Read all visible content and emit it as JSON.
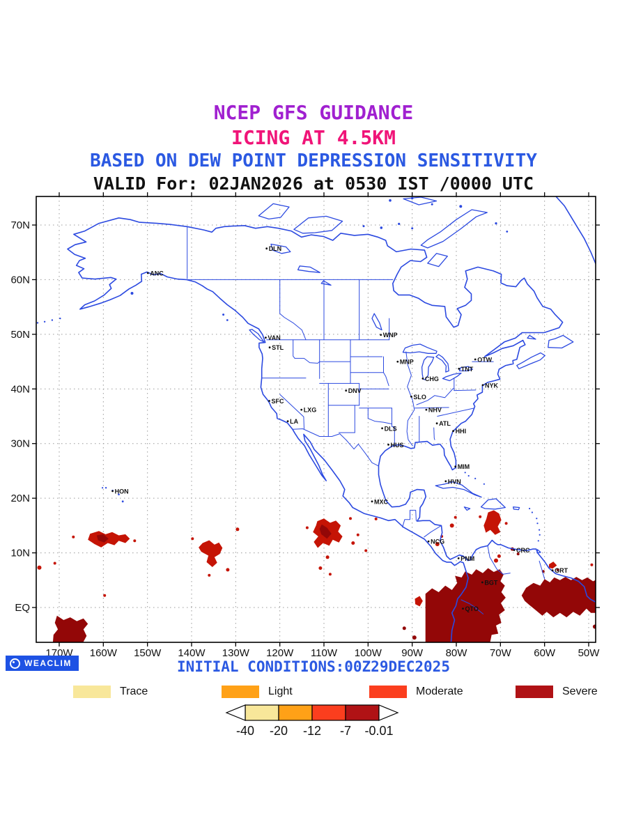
{
  "header": {
    "line1": "NCEP GFS GUIDANCE",
    "line2": "ICING AT 4.5KM",
    "line3": "BASED ON DEW POINT DEPRESSION SENSITIVITY",
    "line4": "VALID For: 02JAN2026 at 0530 IST /0000 UTC",
    "colors": {
      "line1": "#A020D0",
      "line2": "#F01478",
      "line3": "#2B59E2",
      "line4": "#111111"
    }
  },
  "map": {
    "line_color": "#2B49E0",
    "grid_color": "#999999",
    "lat_ticks": [
      {
        "text": "70N",
        "lat": 70
      },
      {
        "text": "60N",
        "lat": 60
      },
      {
        "text": "50N",
        "lat": 50
      },
      {
        "text": "40N",
        "lat": 40
      },
      {
        "text": "30N",
        "lat": 30
      },
      {
        "text": "20N",
        "lat": 20
      },
      {
        "text": "10N",
        "lat": 10
      },
      {
        "text": "EQ",
        "lat": 0
      }
    ],
    "lon_ticks": [
      {
        "text": "170W",
        "lon": 170
      },
      {
        "text": "160W",
        "lon": 160
      },
      {
        "text": "150W",
        "lon": 150
      },
      {
        "text": "140W",
        "lon": 140
      },
      {
        "text": "130W",
        "lon": 130
      },
      {
        "text": "120W",
        "lon": 120
      },
      {
        "text": "110W",
        "lon": 110
      },
      {
        "text": "100W",
        "lon": 100
      },
      {
        "text": "90W",
        "lon": 90
      },
      {
        "text": "80W",
        "lon": 80
      },
      {
        "text": "70W",
        "lon": 70
      },
      {
        "text": "60W",
        "lon": 60
      },
      {
        "text": "50W",
        "lon": 50
      }
    ],
    "cities": [
      {
        "label": "ANC",
        "lon": 149.9,
        "lat": 61.2
      },
      {
        "label": "DLN",
        "lon": 123.0,
        "lat": 65.7
      },
      {
        "label": "VAN",
        "lon": 123.2,
        "lat": 49.4
      },
      {
        "label": "STL",
        "lon": 122.3,
        "lat": 47.6
      },
      {
        "label": "WNP",
        "lon": 97.1,
        "lat": 49.9
      },
      {
        "label": "MNP",
        "lon": 93.3,
        "lat": 45.0
      },
      {
        "label": "OTW",
        "lon": 75.7,
        "lat": 45.4
      },
      {
        "label": "CHG",
        "lon": 87.6,
        "lat": 41.9
      },
      {
        "label": "TNT",
        "lon": 79.4,
        "lat": 43.7
      },
      {
        "label": "NYK",
        "lon": 74.0,
        "lat": 40.7
      },
      {
        "label": "DNV",
        "lon": 105.0,
        "lat": 39.7
      },
      {
        "label": "SLO",
        "lon": 90.2,
        "lat": 38.6
      },
      {
        "label": "SFC",
        "lon": 122.4,
        "lat": 37.8
      },
      {
        "label": "LXG",
        "lon": 115.1,
        "lat": 36.2
      },
      {
        "label": "NHV",
        "lon": 86.8,
        "lat": 36.2
      },
      {
        "label": "LA",
        "lon": 118.2,
        "lat": 34.1
      },
      {
        "label": "ATL",
        "lon": 84.4,
        "lat": 33.7
      },
      {
        "label": "DLS",
        "lon": 96.8,
        "lat": 32.8
      },
      {
        "label": "HHI",
        "lon": 80.7,
        "lat": 32.3
      },
      {
        "label": "HUS",
        "lon": 95.4,
        "lat": 29.8
      },
      {
        "label": "MIM",
        "lon": 80.2,
        "lat": 25.8
      },
      {
        "label": "HVN",
        "lon": 82.4,
        "lat": 23.1
      },
      {
        "label": "HON",
        "lon": 157.9,
        "lat": 21.3
      },
      {
        "label": "MXC",
        "lon": 99.1,
        "lat": 19.4
      },
      {
        "label": "NCG",
        "lon": 86.3,
        "lat": 12.1
      },
      {
        "label": "CRC",
        "lon": 66.9,
        "lat": 10.5
      },
      {
        "label": "PNM",
        "lon": 79.5,
        "lat": 9.0
      },
      {
        "label": "GRT",
        "lon": 58.2,
        "lat": 6.8
      },
      {
        "label": "BGT",
        "lon": 74.1,
        "lat": 4.6
      },
      {
        "label": "QTO",
        "lon": 78.5,
        "lat": -0.2
      }
    ],
    "icing_colors": {
      "moderate": "#C51405",
      "severe": "#930707"
    },
    "icing_regions": [
      {
        "severity": "moderate",
        "points": [
          [
            163,
            13.5
          ],
          [
            161,
            14
          ],
          [
            159.5,
            13.4
          ],
          [
            158,
            13.8
          ],
          [
            156.5,
            13.2
          ],
          [
            155,
            13.4
          ],
          [
            154,
            12.6
          ],
          [
            155,
            11.8
          ],
          [
            156.5,
            12.2
          ],
          [
            157.5,
            11.4
          ],
          [
            159,
            11.8
          ],
          [
            160.5,
            11
          ],
          [
            162,
            11.6
          ],
          [
            163.5,
            12.4
          ]
        ]
      },
      {
        "severity": "severe",
        "points": [
          [
            161.5,
            13.2
          ],
          [
            160,
            13.4
          ],
          [
            158.8,
            12.6
          ],
          [
            159.8,
            11.9
          ],
          [
            161.2,
            12.3
          ]
        ]
      },
      {
        "severity": "moderate",
        "points": [
          [
            137.5,
            11.8
          ],
          [
            136,
            12.3
          ],
          [
            134.8,
            11.5
          ],
          [
            133.8,
            11.9
          ],
          [
            133,
            10.9
          ],
          [
            133.6,
            9.8
          ],
          [
            134.8,
            9.2
          ],
          [
            134.2,
            8.2
          ],
          [
            135.3,
            7.4
          ],
          [
            136.6,
            8.3
          ],
          [
            136.2,
            9.5
          ],
          [
            137.8,
            10.2
          ],
          [
            138.4,
            11
          ]
        ]
      },
      {
        "severity": "moderate",
        "points": [
          [
            111.5,
            15.8
          ],
          [
            110,
            16.3
          ],
          [
            108.6,
            15.5
          ],
          [
            107.3,
            15.9
          ],
          [
            106.2,
            15
          ],
          [
            106.8,
            13.9
          ],
          [
            105.8,
            13
          ],
          [
            106.6,
            11.9
          ],
          [
            108,
            12.4
          ],
          [
            108.8,
            11.3
          ],
          [
            110.2,
            11.8
          ],
          [
            111.4,
            10.9
          ],
          [
            112.3,
            12
          ],
          [
            111.3,
            13
          ],
          [
            112.5,
            13.8
          ],
          [
            111.8,
            15
          ]
        ]
      },
      {
        "severity": "severe",
        "points": [
          [
            110.5,
            15.2
          ],
          [
            109.3,
            14.6
          ],
          [
            108.3,
            13.5
          ],
          [
            109.3,
            12.6
          ],
          [
            110.6,
            13.4
          ],
          [
            111,
            14.4
          ]
        ]
      },
      {
        "severity": "moderate",
        "points": [
          [
            72.8,
            17.4
          ],
          [
            71.5,
            17.8
          ],
          [
            70.3,
            17.2
          ],
          [
            69.8,
            16
          ],
          [
            70.6,
            14.8
          ],
          [
            70,
            13.8
          ],
          [
            71.2,
            13.3
          ],
          [
            72.3,
            14.2
          ],
          [
            73.3,
            13.7
          ],
          [
            73.8,
            15
          ],
          [
            73.2,
            16.2
          ]
        ]
      },
      {
        "severity": "severe",
        "points": [
          [
            87,
            2.5
          ],
          [
            85.5,
            3.5
          ],
          [
            84,
            2.8
          ],
          [
            82.5,
            4
          ],
          [
            81,
            3.2
          ],
          [
            79.8,
            4.5
          ],
          [
            80.3,
            5.8
          ],
          [
            78.8,
            5.5
          ],
          [
            78,
            6.6
          ],
          [
            76.5,
            6
          ],
          [
            75.5,
            7
          ],
          [
            74,
            6.3
          ],
          [
            72.8,
            7.2
          ],
          [
            71.5,
            6.5
          ],
          [
            70.2,
            7
          ],
          [
            69.3,
            6
          ],
          [
            70,
            4.8
          ],
          [
            69,
            4
          ],
          [
            69.8,
            2.8
          ],
          [
            68.8,
            1.8
          ],
          [
            69.9,
            0.8
          ],
          [
            69,
            -0.5
          ],
          [
            70.3,
            -1.3
          ],
          [
            69.8,
            -2.8
          ],
          [
            71,
            -3.3
          ],
          [
            70.5,
            -4.8
          ],
          [
            72,
            -5
          ],
          [
            72.5,
            -7
          ],
          [
            87,
            -7
          ]
        ]
      },
      {
        "severity": "severe",
        "points": [
          [
            65.2,
            2.2
          ],
          [
            64.2,
            3.6
          ],
          [
            62.5,
            4.5
          ],
          [
            61,
            4
          ],
          [
            60,
            5.2
          ],
          [
            58.8,
            4.6
          ],
          [
            57.8,
            5.5
          ],
          [
            56.5,
            5
          ],
          [
            55.3,
            5.6
          ],
          [
            54,
            5
          ],
          [
            52.8,
            5.6
          ],
          [
            51.5,
            5
          ],
          [
            50.3,
            5.5
          ],
          [
            49,
            4.8
          ],
          [
            48,
            5.2
          ],
          [
            48,
            -1
          ],
          [
            49.5,
            -1
          ],
          [
            50.5,
            -0.2
          ],
          [
            52,
            -1.5
          ],
          [
            53.5,
            -0.8
          ],
          [
            55,
            -1.8
          ],
          [
            56.5,
            -1
          ],
          [
            58,
            -1.8
          ],
          [
            59.5,
            -0.8
          ],
          [
            60.5,
            -1.5
          ],
          [
            62,
            -0.5
          ],
          [
            63.5,
            0.5
          ],
          [
            64.5,
            1.2
          ]
        ]
      },
      {
        "severity": "severe",
        "points": [
          [
            170.5,
            -1.5
          ],
          [
            169,
            -2.3
          ],
          [
            167.5,
            -1.8
          ],
          [
            166,
            -2.5
          ],
          [
            164.5,
            -2
          ],
          [
            163.5,
            -3
          ],
          [
            164.5,
            -4
          ],
          [
            163.8,
            -5.2
          ],
          [
            165,
            -7
          ],
          [
            171.5,
            -7
          ],
          [
            171.3,
            -5
          ],
          [
            170.3,
            -4
          ],
          [
            171,
            -2.8
          ]
        ]
      },
      {
        "severity": "moderate",
        "points": [
          [
            59,
            7.9
          ],
          [
            58,
            8.4
          ],
          [
            57.2,
            7.7
          ],
          [
            58.2,
            7.1
          ],
          [
            59,
            7.3
          ]
        ]
      },
      {
        "severity": "moderate",
        "points": [
          [
            89.4,
            1.6
          ],
          [
            88.3,
            2.1
          ],
          [
            87.6,
            1.2
          ],
          [
            88.3,
            0.2
          ],
          [
            89.3,
            0.6
          ]
        ]
      }
    ],
    "icing_speckles": [
      [
        174.5,
        7.3,
        3,
        "moderate"
      ],
      [
        171,
        8.1,
        2,
        "moderate"
      ],
      [
        166.8,
        12.9,
        2,
        "moderate"
      ],
      [
        152.9,
        12.2,
        2,
        "moderate"
      ],
      [
        159.7,
        2.2,
        2,
        "moderate"
      ],
      [
        139.8,
        12.6,
        2,
        "moderate"
      ],
      [
        131.8,
        6.9,
        2.5,
        "moderate"
      ],
      [
        129.6,
        14.3,
        2.5,
        "moderate"
      ],
      [
        136,
        5.9,
        2,
        "moderate"
      ],
      [
        113.8,
        14.6,
        2,
        "moderate"
      ],
      [
        104,
        16.3,
        2,
        "moderate"
      ],
      [
        102.3,
        13.3,
        2,
        "moderate"
      ],
      [
        109.2,
        9.2,
        2.5,
        "moderate"
      ],
      [
        110.8,
        7.2,
        2.5,
        "moderate"
      ],
      [
        108.6,
        6.1,
        2,
        "moderate"
      ],
      [
        103.4,
        11.8,
        2.5,
        "moderate"
      ],
      [
        100.5,
        10.4,
        2,
        "moderate"
      ],
      [
        98.2,
        16.2,
        2,
        "moderate"
      ],
      [
        84.3,
        11.6,
        3,
        "moderate"
      ],
      [
        83.3,
        13,
        2,
        "moderate"
      ],
      [
        81,
        15,
        3,
        "moderate"
      ],
      [
        80.2,
        16.5,
        2,
        "moderate"
      ],
      [
        74.6,
        16.6,
        2,
        "moderate"
      ],
      [
        68.7,
        15.4,
        2,
        "moderate"
      ],
      [
        71,
        8.6,
        3,
        "moderate"
      ],
      [
        70.3,
        9.4,
        2.5,
        "moderate"
      ],
      [
        67.3,
        10.7,
        2.5,
        "severe"
      ],
      [
        66,
        9.8,
        2,
        "severe"
      ],
      [
        91.8,
        -3.8,
        2.5,
        "severe"
      ],
      [
        89.5,
        -5.5,
        3,
        "severe"
      ],
      [
        60.3,
        6.6,
        2,
        "severe"
      ],
      [
        57,
        6.9,
        2,
        "severe"
      ],
      [
        49.3,
        7.8,
        2,
        "moderate"
      ],
      [
        48.6,
        -3.5,
        3,
        "severe"
      ]
    ]
  },
  "footer": {
    "logo_text": "WEACLIM",
    "initial_conditions": "INITIAL CONDITIONS:00Z29DEC2025"
  },
  "legend": {
    "items": [
      {
        "label": "Trace",
        "color": "#F8E79A"
      },
      {
        "label": "Light",
        "color": "#FFA117"
      },
      {
        "label": "Moderate",
        "color": "#FB3E1E"
      },
      {
        "label": "Severe",
        "color": "#B01215"
      }
    ],
    "colorbar_ticks": [
      "-40",
      "-20",
      "-12",
      "-7",
      "-0.01"
    ]
  }
}
